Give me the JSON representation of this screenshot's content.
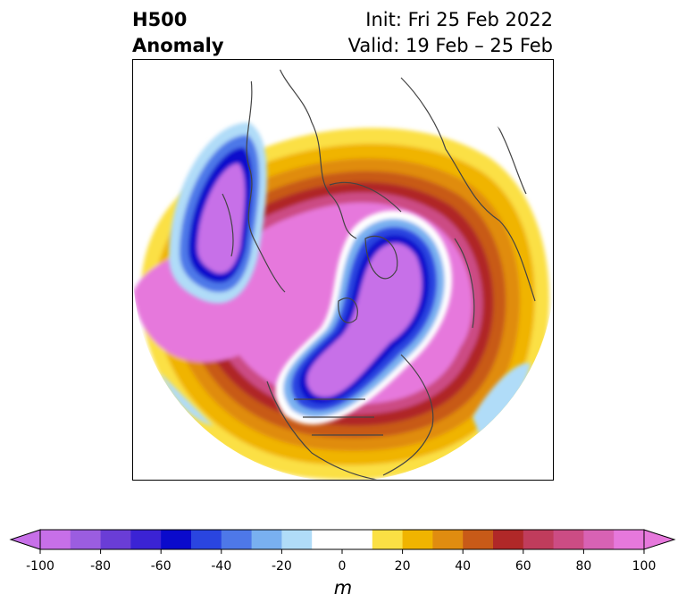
{
  "title": {
    "left_line1": "H500",
    "left_line2": "Anomaly",
    "right_line1": "Init: Fri 25 Feb 2022",
    "right_line2": "Valid: 19 Feb – 25 Feb"
  },
  "colorbar": {
    "unit": "m",
    "ticks": [
      "-100",
      "-80",
      "-60",
      "-40",
      "-20",
      "0",
      "20",
      "40",
      "60",
      "80",
      "100"
    ],
    "bin_colors": [
      "#c76fe8",
      "#9b5de0",
      "#6a3dd6",
      "#3b23d4",
      "#0a0acc",
      "#2a45e0",
      "#4e78e8",
      "#79b0f0",
      "#b0dcf8",
      "#ffffff",
      "#ffffff",
      "#fbe044",
      "#f0b400",
      "#e08c10",
      "#c85a18",
      "#b02828",
      "#c03c5c",
      "#cc4c84",
      "#d862b4",
      "#e678dc"
    ],
    "extend_low_color": "#c76fe8",
    "extend_high_color": "#e678dc"
  },
  "map": {
    "projection": "polar stereographic (north)",
    "variable": "500 hPa geopotential height anomaly",
    "coastline_color": "#444444"
  }
}
